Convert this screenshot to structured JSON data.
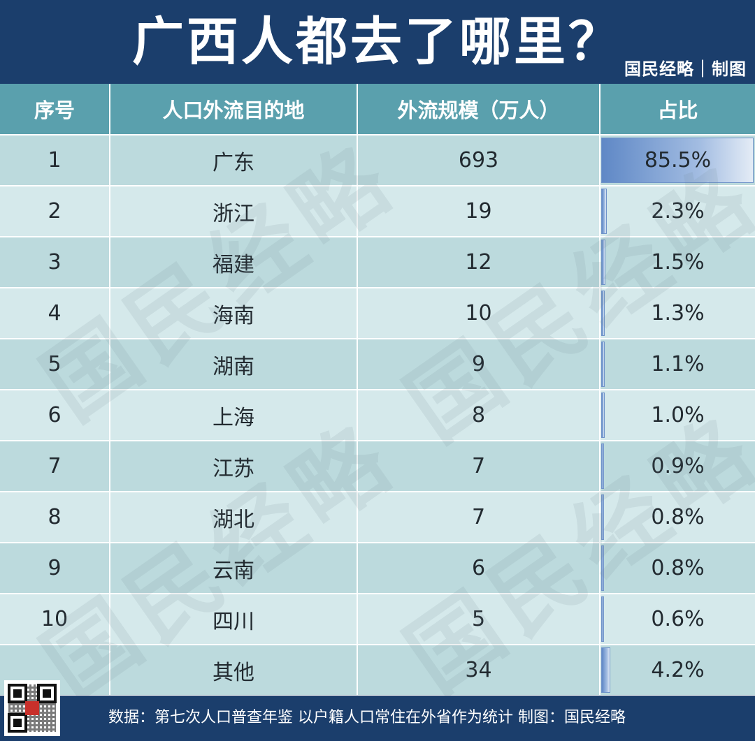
{
  "header": {
    "title": "广西人都去了哪里？",
    "maker": "国民经略｜制图"
  },
  "table": {
    "columns": [
      "序号",
      "人口外流目的地",
      "外流规模（万人）",
      "占比"
    ],
    "rows": [
      {
        "rank": "1",
        "destination": "广东",
        "scale": "693",
        "share": "85.5%",
        "share_value": 85.5
      },
      {
        "rank": "2",
        "destination": "浙江",
        "scale": "19",
        "share": "2.3%",
        "share_value": 2.3
      },
      {
        "rank": "3",
        "destination": "福建",
        "scale": "12",
        "share": "1.5%",
        "share_value": 1.5
      },
      {
        "rank": "4",
        "destination": "海南",
        "scale": "10",
        "share": "1.3%",
        "share_value": 1.3
      },
      {
        "rank": "5",
        "destination": "湖南",
        "scale": "9",
        "share": "1.1%",
        "share_value": 1.1
      },
      {
        "rank": "6",
        "destination": "上海",
        "scale": "8",
        "share": "1.0%",
        "share_value": 1.0
      },
      {
        "rank": "7",
        "destination": "江苏",
        "scale": "7",
        "share": "0.9%",
        "share_value": 0.9
      },
      {
        "rank": "8",
        "destination": "湖北",
        "scale": "7",
        "share": "0.8%",
        "share_value": 0.8
      },
      {
        "rank": "9",
        "destination": "云南",
        "scale": "6",
        "share": "0.8%",
        "share_value": 0.8
      },
      {
        "rank": "10",
        "destination": "四川",
        "scale": "5",
        "share": "0.6%",
        "share_value": 0.6
      },
      {
        "rank": "",
        "destination": "其他",
        "scale": "34",
        "share": "4.2%",
        "share_value": 4.2
      }
    ]
  },
  "watermark": "国民经略",
  "footer": {
    "source": "数据：第七次人口普查年鉴 以户籍人口常住在外省作为统计 制图：国民经略"
  },
  "colors": {
    "header_bg": "#1b3e6c",
    "column_header_bg": "#5aa0ad",
    "row_odd": "#bcdadd",
    "row_even": "#d5e9eb",
    "bar": "#5f88c6"
  },
  "icons": {
    "qr": "qr-code-icon"
  }
}
